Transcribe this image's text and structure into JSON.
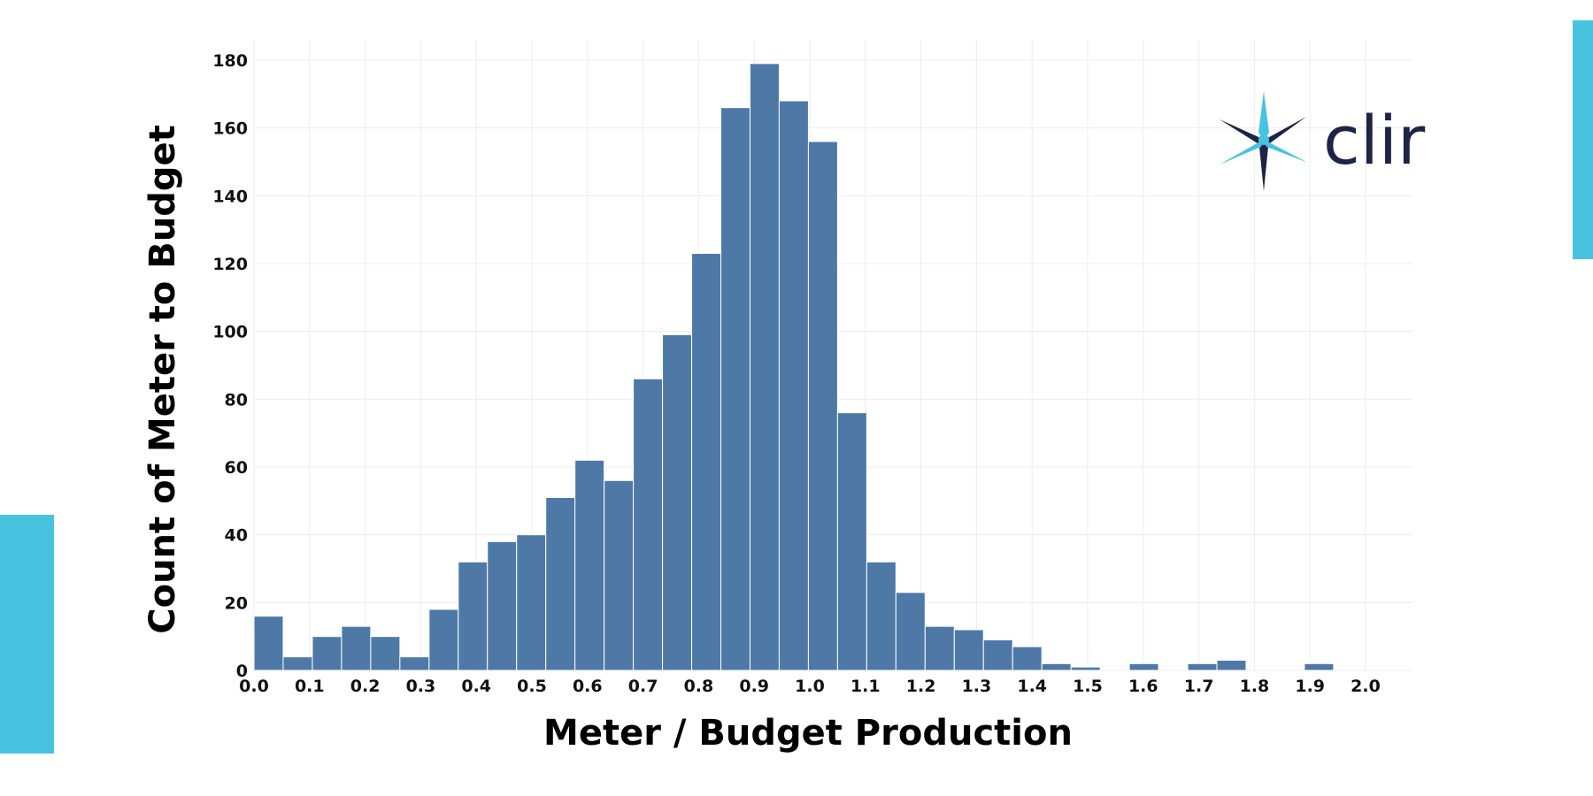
{
  "colors": {
    "bar": "#4e79a7",
    "bar_edge": "#ffffff",
    "accent": "#48c3df",
    "grid": "#ececec",
    "logo_dark": "#1d2446",
    "logo_blue": "#48c3df"
  },
  "logo": {
    "text": "clir",
    "icon": "turbine-star-icon"
  },
  "chart_data": {
    "type": "bar",
    "title": "",
    "xlabel": "Meter / Budget Production",
    "ylabel": "Count of Meter to Budget",
    "xlim": [
      0.0,
      2.0
    ],
    "ylim": [
      0,
      180
    ],
    "xticks": [
      "0.0",
      "0.1",
      "0.2",
      "0.3",
      "0.4",
      "0.5",
      "0.6",
      "0.7",
      "0.8",
      "0.9",
      "1.0",
      "1.1",
      "1.2",
      "1.3",
      "1.4",
      "1.5",
      "1.6",
      "1.7",
      "1.8",
      "1.9",
      "2.0"
    ],
    "yticks": [
      "0",
      "20",
      "40",
      "60",
      "80",
      "100",
      "120",
      "140",
      "160",
      "180"
    ],
    "grid": true,
    "bin_width": 0.0525,
    "bin_starts": [
      0.0,
      0.0525,
      0.105,
      0.1575,
      0.21,
      0.2625,
      0.315,
      0.3675,
      0.42,
      0.4725,
      0.525,
      0.5775,
      0.63,
      0.6825,
      0.735,
      0.7875,
      0.84,
      0.8925,
      0.945,
      0.9975,
      1.05,
      1.1025,
      1.155,
      1.2075,
      1.26,
      1.3125,
      1.365,
      1.4175,
      1.47,
      1.5225,
      1.575,
      1.6275,
      1.68,
      1.7325,
      1.785,
      1.8375,
      1.89,
      1.9425
    ],
    "values": [
      16,
      4,
      10,
      13,
      10,
      4,
      18,
      32,
      38,
      40,
      51,
      62,
      56,
      86,
      99,
      123,
      166,
      179,
      168,
      156,
      76,
      32,
      23,
      13,
      12,
      9,
      7,
      2,
      1,
      0,
      2,
      0,
      2,
      3,
      0,
      0,
      2,
      0
    ]
  }
}
